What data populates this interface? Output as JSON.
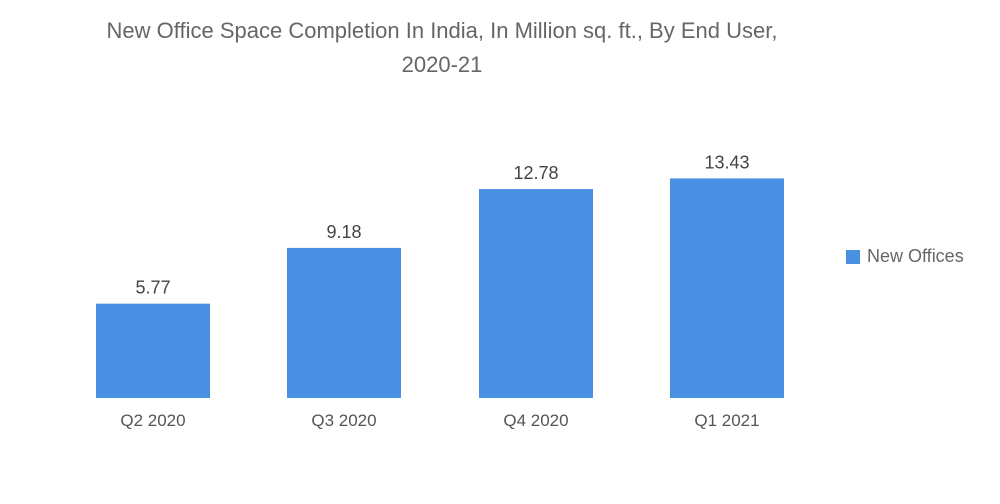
{
  "chart_data": {
    "type": "bar",
    "title_lines": [
      "New Office Space Completion In India, In Million sq. ft., By End User,",
      "2020-21"
    ],
    "categories": [
      "Q2 2020",
      "Q3 2020",
      "Q4 2020",
      "Q1 2021"
    ],
    "series": [
      {
        "name": "New Offices",
        "values": [
          5.77,
          9.18,
          12.78,
          13.43
        ],
        "value_labels": [
          "5.77",
          "9.18",
          "12.78",
          "13.43"
        ],
        "color": "#4a90e2"
      }
    ],
    "xlabel": "",
    "ylabel": "",
    "ylim": [
      0,
      15
    ],
    "grid": false,
    "legend": "right"
  }
}
